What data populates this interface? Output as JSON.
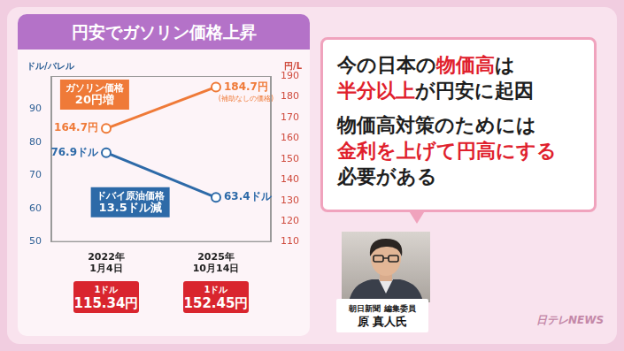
{
  "chart_data": {
    "type": "line",
    "title": "円安でガソリン価格上昇",
    "categories": [
      "2022年1月4日",
      "2025年10月14日"
    ],
    "exchange_rates": [
      {
        "label": "1ドル",
        "value": "115.34円"
      },
      {
        "label": "1ドル",
        "value": "152.45円"
      }
    ],
    "series": [
      {
        "name": "ガソリン価格",
        "annotation": "20円増",
        "color": "#ef7a38",
        "axis": "y2",
        "marker": "circle",
        "values": [
          164.7,
          184.7
        ],
        "value_labels": [
          "164.7円",
          "184.7円"
        ],
        "point_notes": [
          null,
          "(補助なしの価格)"
        ]
      },
      {
        "name": "ドバイ原油価格",
        "annotation": "13.5ドル減",
        "color": "#2d6aa8",
        "marker": "circle",
        "values": [
          76.9,
          63.4
        ],
        "value_labels": [
          "76.9ドル",
          "63.4ドル"
        ]
      }
    ],
    "y_label": "ドル/バレル",
    "y2_label": "円/L",
    "ylim": [
      50,
      100
    ],
    "yticks": [
      50,
      60,
      70,
      80,
      90
    ],
    "y2lim": [
      110,
      190
    ],
    "y2ticks": [
      110,
      120,
      130,
      140,
      150,
      160,
      170,
      180,
      190
    ],
    "grid": false,
    "data_labels": true
  },
  "commentary": [
    [
      [
        {
          "text": "今の日本の"
        },
        {
          "text": "物価高",
          "emphasis": true
        },
        {
          "text": "は"
        }
      ],
      [
        {
          "text": "半分以上",
          "emphasis": true
        },
        {
          "text": "が円安に起因"
        }
      ]
    ],
    [
      [
        {
          "text": "物価高対策のためには"
        }
      ],
      [
        {
          "text": "金利を上げて円高にする",
          "emphasis": true
        }
      ],
      [
        {
          "text": "必要がある"
        }
      ]
    ]
  ],
  "speaker": {
    "affiliation": "朝日新聞 編集委員",
    "name": "原 真人氏"
  },
  "watermark": "日テレNEWS"
}
